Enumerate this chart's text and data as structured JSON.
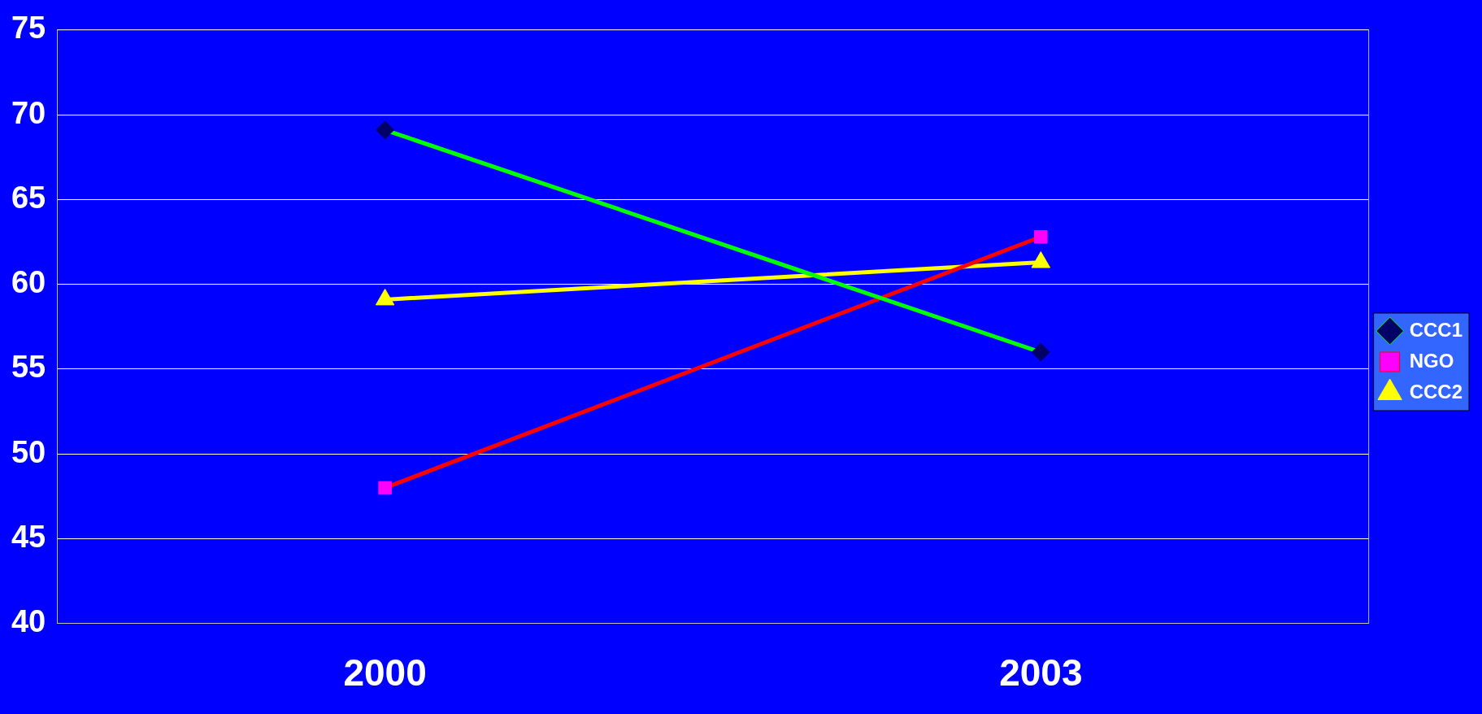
{
  "chart_data": {
    "type": "line",
    "categories": [
      "2000",
      "2003"
    ],
    "series": [
      {
        "name": "CCC1",
        "color": "#00ff00",
        "colors": [
          "#000066",
          "#000066"
        ],
        "marker": "diamond",
        "values": [
          69.1,
          56.0
        ]
      },
      {
        "name": "NGO",
        "color": "#ff0000",
        "colors": [
          "#ff00ff",
          "#ff00ff"
        ],
        "marker": "square",
        "values": [
          48.0,
          62.8
        ]
      },
      {
        "name": "CCC2",
        "color": "#ffff00",
        "colors": [
          "#ffff00",
          "#ffff00"
        ],
        "marker": "triangle",
        "values": [
          59.1,
          61.3
        ]
      }
    ],
    "ylim": [
      40,
      75
    ],
    "yticks": [
      40,
      45,
      50,
      55,
      60,
      65,
      70,
      75
    ],
    "grid": "y",
    "legend": "right",
    "line_style": "solid"
  }
}
